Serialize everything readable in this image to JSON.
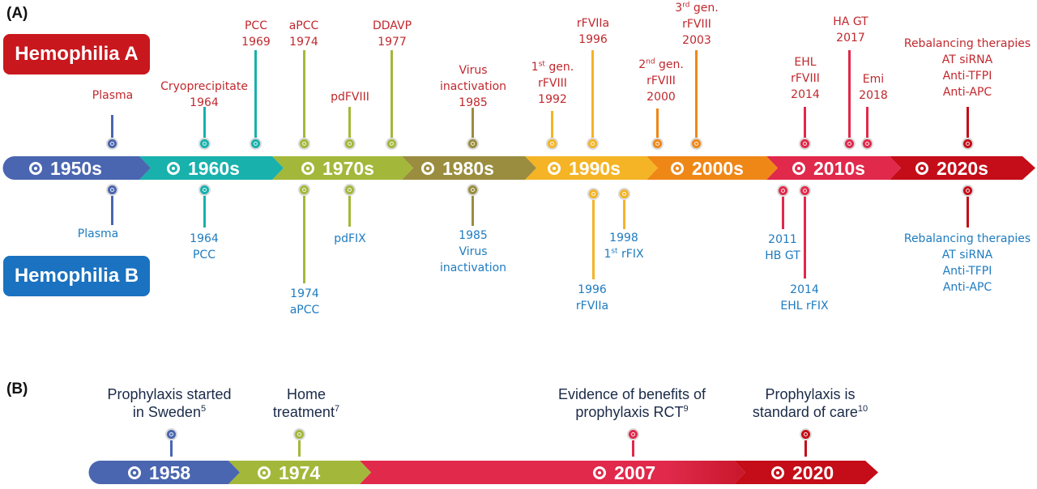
{
  "colors": {
    "hemophilia_a": "#c8171d",
    "hemophilia_b": "#1a72c0",
    "decades": [
      "#4a66b0",
      "#18b1ac",
      "#a3b83a",
      "#9a8d3f",
      "#f4b425",
      "#ef8717",
      "#e0294b",
      "#c40d18"
    ]
  },
  "panel_a": {
    "label": "(A)",
    "hemophilia_a_label": "Hemophilia A",
    "hemophilia_b_label": "Hemophilia B",
    "decades": [
      "1950s",
      "1960s",
      "1970s",
      "1980s",
      "1990s",
      "2000s",
      "2010s",
      "2020s"
    ],
    "events_a": [
      {
        "lines": [
          "Plasma"
        ]
      },
      {
        "lines": [
          "Cryoprecipitate",
          "1964"
        ]
      },
      {
        "lines": [
          "PCC",
          "1969"
        ]
      },
      {
        "lines": [
          "aPCC",
          "1974"
        ]
      },
      {
        "lines": [
          "pdFVIII"
        ]
      },
      {
        "lines": [
          "DDAVP",
          "1977"
        ]
      },
      {
        "lines": [
          "Virus",
          "inactivation",
          "1985"
        ]
      },
      {
        "lines": [
          "1",
          "st",
          " gen.",
          "rFVIII",
          "1992"
        ]
      },
      {
        "lines": [
          "rFVIIa",
          "1996"
        ]
      },
      {
        "lines": [
          "2",
          "nd",
          " gen.",
          "rFVIII",
          "2000"
        ]
      },
      {
        "lines": [
          "3",
          "rd",
          " gen.",
          "rFVIII",
          "2003"
        ]
      },
      {
        "lines": [
          "EHL",
          "rFVIII",
          "2014"
        ]
      },
      {
        "lines": [
          "HA GT",
          "2017"
        ]
      },
      {
        "lines": [
          "Emi",
          "2018"
        ]
      },
      {
        "lines": [
          "Rebalancing therapies",
          "AT siRNA",
          "Anti-TFPI",
          "Anti-APC"
        ]
      }
    ],
    "events_b": [
      {
        "lines": [
          "Plasma"
        ]
      },
      {
        "lines": [
          "1964",
          "PCC"
        ]
      },
      {
        "lines": [
          "1974",
          "aPCC"
        ]
      },
      {
        "lines": [
          "pdFIX"
        ]
      },
      {
        "lines": [
          "1985",
          "Virus",
          "inactivation"
        ]
      },
      {
        "lines": [
          "1996",
          "rFVIIa"
        ]
      },
      {
        "lines": [
          "1998",
          "1",
          "st",
          " rFIX"
        ]
      },
      {
        "lines": [
          "2011",
          "HB GT"
        ]
      },
      {
        "lines": [
          "2014",
          "EHL rFIX"
        ]
      },
      {
        "lines": [
          "Rebalancing therapies",
          "AT siRNA",
          "Anti-TFPI",
          "Anti-APC"
        ]
      }
    ]
  },
  "panel_b": {
    "label": "(B)",
    "years": [
      "1958",
      "1974",
      "2007",
      "2020"
    ],
    "events": [
      {
        "line1": "Prophylaxis started",
        "line2": "in Sweden",
        "ref": "5"
      },
      {
        "line1": "Home",
        "line2": "treatment",
        "ref": "7"
      },
      {
        "line1": "Evidence of benefits of",
        "line2": "prophylaxis RCT",
        "ref": "9"
      },
      {
        "line1": "Prophylaxis is",
        "line2": "standard of care",
        "ref": "10"
      }
    ]
  }
}
